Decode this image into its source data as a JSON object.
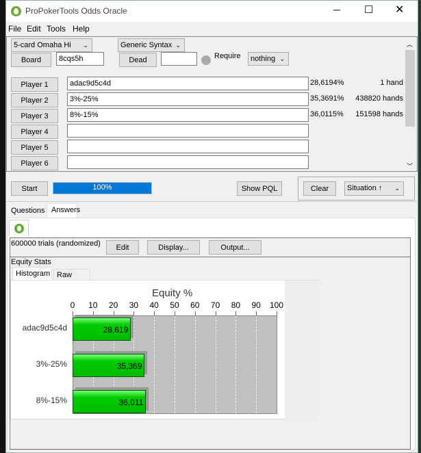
{
  "window": {
    "title": "ProPokerTools Odds Oracle",
    "menu": [
      "File",
      "Edit",
      "Tools",
      "Help"
    ]
  },
  "setup": {
    "game": "5-card Omaha Hi",
    "syntax": "Generic Syntax",
    "board_label": "Board",
    "board": "8cqs5h",
    "dead_label": "Dead",
    "dead": "",
    "require_label": "Require",
    "require": "nothing"
  },
  "players": [
    {
      "label": "Player 1",
      "hand": "adac9d5c4d",
      "equity": "28,6194%",
      "hands": "1 hand"
    },
    {
      "label": "Player 2",
      "hand": "3%-25%",
      "equity": "35,3691%",
      "hands": "438820 hands"
    },
    {
      "label": "Player 3",
      "hand": "8%-15%",
      "equity": "36,0115%",
      "hands": "151598 hands"
    },
    {
      "label": "Player 4",
      "hand": "",
      "equity": "",
      "hands": ""
    },
    {
      "label": "Player 5",
      "hand": "",
      "equity": "",
      "hands": ""
    },
    {
      "label": "Player 6",
      "hand": "",
      "equity": "",
      "hands": ""
    }
  ],
  "controls": {
    "start": "Start",
    "progress_text": "100%",
    "progress": 100,
    "show_pql": "Show PQL",
    "clear": "Clear",
    "situation": "Situation ↑"
  },
  "tabs": [
    "Questions",
    "Answers"
  ],
  "answers": {
    "trials": "600000 trials (randomized)",
    "edit": "Edit",
    "display": "Display...",
    "output": "Output...",
    "section": "Equity Stats",
    "subtabs": [
      "Histogram",
      "Raw Data"
    ]
  },
  "chart_data": {
    "type": "bar",
    "orientation": "horizontal",
    "title": "Equity %",
    "categories": [
      "adac9d5c4d",
      "3%-25%",
      "8%-15%"
    ],
    "values": [
      28.619,
      35.369,
      36.011
    ],
    "value_labels": [
      "28,619",
      "35,369",
      "36,011"
    ],
    "xlim": [
      0,
      100
    ],
    "ticks": [
      "0",
      "10",
      "20",
      "30",
      "40",
      "50",
      "60",
      "70",
      "80",
      "90",
      "100"
    ],
    "grid": true,
    "bar_color": "#00cc00"
  }
}
